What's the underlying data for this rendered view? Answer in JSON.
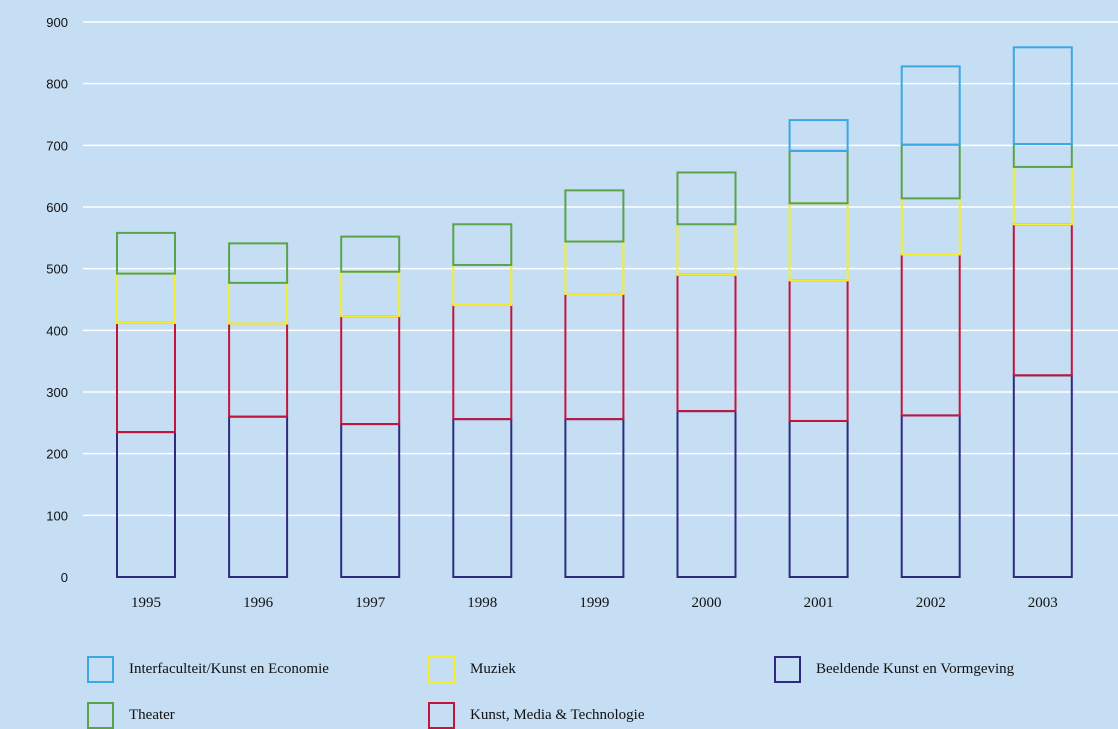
{
  "chart_data": {
    "type": "bar",
    "stacked": true,
    "categories": [
      "1995",
      "1996",
      "1997",
      "1998",
      "1999",
      "2000",
      "2001",
      "2002",
      "2003"
    ],
    "ylim": [
      0,
      900
    ],
    "yticks": [
      0,
      100,
      200,
      300,
      400,
      500,
      600,
      700,
      800,
      900
    ],
    "grid": true,
    "legend_position": "bottom",
    "series": [
      {
        "name": "Beeldende Kunst en Vormgeving",
        "color": "#2e2a7e",
        "values": [
          235,
          260,
          248,
          256,
          256,
          269,
          253,
          262,
          327
        ]
      },
      {
        "name": "Kunst, Media & Technologie",
        "color": "#c4143c",
        "values": [
          177,
          151,
          175,
          185,
          203,
          221,
          228,
          261,
          245
        ]
      },
      {
        "name": "Muziek",
        "color": "#f5ee2a",
        "values": [
          80,
          66,
          72,
          65,
          85,
          82,
          125,
          91,
          93
        ]
      },
      {
        "name": "Theater",
        "color": "#5aa34a",
        "values": [
          66,
          64,
          57,
          66,
          83,
          84,
          85,
          87,
          37
        ]
      },
      {
        "name": "Interfaculteit/Kunst en Economie",
        "color": "#3ba7e3",
        "values": [
          0,
          0,
          0,
          0,
          0,
          0,
          50,
          127,
          157
        ]
      }
    ]
  },
  "legend": [
    {
      "label": "Interfaculteit/Kunst en Economie",
      "color": "#3ba7e3"
    },
    {
      "label": "Muziek",
      "color": "#f5ee2a"
    },
    {
      "label": "Beeldende Kunst en Vormgeving",
      "color": "#2e2a7e"
    },
    {
      "label": "Theater",
      "color": "#5aa34a"
    },
    {
      "label": "Kunst, Media & Technologie",
      "color": "#c4143c"
    }
  ]
}
